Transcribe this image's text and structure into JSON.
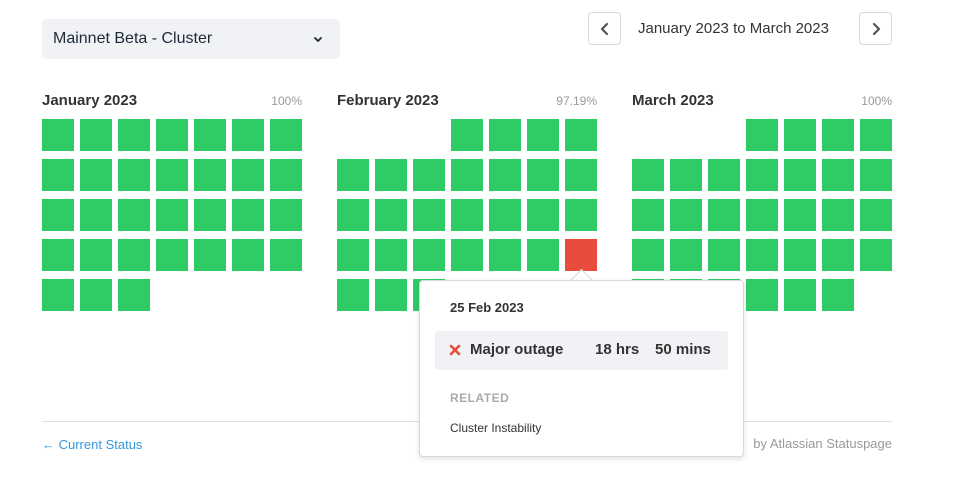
{
  "component_select": {
    "value": "Mainnet Beta - Cluster",
    "chevron_icon": "chevron-down-icon"
  },
  "date_nav": {
    "range_label": "January 2023 to March 2023",
    "prev_icon": "chevron-left-icon",
    "next_icon": "chevron-right-icon"
  },
  "colors": {
    "operational": "#2fcc66",
    "major_outage": "#e74c3c",
    "link": "#3498db"
  },
  "months": [
    {
      "name": "January 2023",
      "uptime": "100%",
      "start_weekday": 0,
      "days": 31,
      "outage_days": []
    },
    {
      "name": "February 2023",
      "uptime": "97.19%",
      "start_weekday": 3,
      "days": 28,
      "outage_days": [
        25
      ]
    },
    {
      "name": "March 2023",
      "uptime": "100%",
      "start_weekday": 3,
      "days": 31,
      "outage_days": []
    }
  ],
  "footer": {
    "back_link": "← Current Status",
    "powered_by": "by Atlassian Statuspage"
  },
  "tooltip": {
    "date": "25 Feb 2023",
    "status_icon": "x-icon",
    "status_label": "Major outage",
    "hours": "18 hrs",
    "minutes": "50 mins",
    "related_heading": "RELATED",
    "related_incident": "Cluster Instability"
  }
}
